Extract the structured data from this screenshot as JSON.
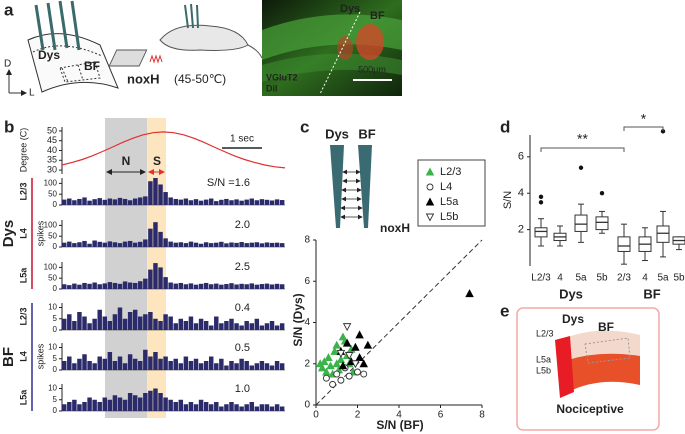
{
  "panel_labels": [
    "a",
    "b",
    "c",
    "d",
    "e"
  ],
  "a": {
    "left": {
      "regions": [
        "Dys",
        "BF"
      ],
      "axes": [
        "D",
        "L"
      ]
    },
    "middle": {
      "stimulus": "noxH",
      "temperature": "(45-50℃)"
    },
    "image": {
      "regions": [
        "Dys",
        "BF"
      ],
      "stains": [
        "VGluT2",
        "DiI"
      ],
      "scale_bar": "500μm"
    }
  },
  "b": {
    "temperature_ylabel": "Degree (C)",
    "ylim": [
      28,
      52
    ],
    "yticks": [
      30,
      35,
      40,
      45,
      50
    ],
    "temperature": [
      32.6,
      33.9,
      35.4,
      37.3,
      39.5,
      41.8,
      44.2,
      46.3,
      48.0,
      49.1,
      49.5,
      49.1,
      48.0,
      46.3,
      44.2,
      41.8,
      39.5,
      37.3,
      35.4,
      33.9,
      32.6,
      31.7,
      31.1
    ],
    "temperature_color": "#e03030",
    "bar_color": "#2b2b6b",
    "n_label": "N",
    "s_label": "S",
    "time_scale": "1 sec",
    "spikes_label": "spikes",
    "groups": [
      {
        "name": "Dys",
        "color": "#c8102e",
        "ylim": [
          0,
          125
        ],
        "yticks": [
          0,
          50,
          100
        ],
        "rows": [
          {
            "layer": "L2/3",
            "sn": "S/N =1.6",
            "counts": [
              25,
              30,
              22,
              28,
              35,
              20,
              27,
              32,
              24,
              30,
              26,
              33,
              28,
              22,
              30,
              35,
              40,
              110,
              125,
              95,
              60,
              35,
              28,
              25,
              30,
              22,
              27,
              20,
              25,
              30,
              18,
              24,
              28,
              22,
              26,
              20,
              25,
              30,
              22,
              27,
              24,
              21,
              26,
              23
            ]
          },
          {
            "layer": "L4",
            "sn": "2.0",
            "counts": [
              20,
              25,
              18,
              22,
              28,
              15,
              30,
              24,
              20,
              26,
              22,
              18,
              25,
              28,
              20,
              24,
              35,
              85,
              115,
              70,
              40,
              25,
              20,
              22,
              18,
              25,
              20,
              15,
              22,
              18,
              20,
              24,
              17,
              21,
              19,
              23,
              18,
              20,
              22,
              17,
              21,
              19,
              20,
              18
            ]
          },
          {
            "layer": "L5a",
            "sn": "2.5",
            "counts": [
              22,
              18,
              25,
              20,
              28,
              24,
              30,
              22,
              26,
              32,
              28,
              24,
              35,
              30,
              28,
              36,
              48,
              90,
              120,
              100,
              55,
              30,
              25,
              28,
              22,
              26,
              20,
              24,
              28,
              22,
              25,
              20,
              23,
              27,
              21,
              24,
              22,
              26,
              20,
              23,
              25,
              21,
              24,
              22
            ]
          }
        ]
      },
      {
        "name": "BF",
        "color": "#2e3192",
        "ylim": [
          0,
          12
        ],
        "yticks": [
          0,
          5,
          10
        ],
        "rows": [
          {
            "layer": "L2/3",
            "sn": "0.4",
            "counts": [
              5,
              7,
              4,
              8,
              6,
              3,
              5,
              9,
              6,
              4,
              7,
              10,
              5,
              8,
              9,
              6,
              7,
              8,
              5,
              4,
              7,
              6,
              3,
              5,
              4,
              6,
              3,
              5,
              4,
              2,
              6,
              3,
              4,
              5,
              3,
              2,
              4,
              3,
              5,
              2,
              3,
              4,
              2,
              3
            ]
          },
          {
            "layer": "L4",
            "sn": "0.5",
            "counts": [
              4,
              6,
              3,
              5,
              7,
              4,
              3,
              6,
              5,
              8,
              4,
              6,
              3,
              7,
              5,
              4,
              9,
              6,
              8,
              5,
              6,
              4,
              5,
              3,
              6,
              4,
              5,
              3,
              4,
              6,
              3,
              5,
              2,
              4,
              3,
              5,
              4,
              2,
              3,
              4,
              3,
              2,
              4,
              3
            ]
          },
          {
            "layer": "L5a",
            "sn": "1.0",
            "counts": [
              3,
              4,
              5,
              3,
              4,
              6,
              5,
              4,
              6,
              5,
              7,
              6,
              5,
              8,
              7,
              6,
              8,
              9,
              10,
              8,
              6,
              5,
              4,
              5,
              3,
              4,
              3,
              5,
              4,
              3,
              4,
              2,
              3,
              4,
              3,
              2,
              3,
              4,
              2,
              3,
              3,
              2,
              3,
              2
            ]
          }
        ]
      }
    ]
  },
  "c": {
    "electrodes": [
      "Dys",
      "BF"
    ],
    "stimulus": "noxH",
    "xlabel": "S/N (BF)",
    "ylabel": "S/N (Dys)",
    "xlim": [
      0,
      8
    ],
    "ylim": [
      0,
      8
    ],
    "xticks": [
      0,
      2,
      4,
      6,
      8
    ],
    "yticks": [
      0,
      2,
      4,
      6,
      8
    ],
    "series": [
      {
        "name": "L2/3",
        "marker": "triangle",
        "color": "#3cb34a",
        "filled": true,
        "x": [
          0.3,
          0.4,
          0.5,
          0.6,
          0.7,
          0.8,
          0.9,
          1.0,
          1.1,
          1.2,
          1.3,
          1.4,
          1.5,
          1.6,
          1.8,
          0.2,
          1.0,
          1.7
        ],
        "y": [
          1.8,
          2.1,
          1.6,
          2.3,
          1.9,
          1.5,
          2.6,
          2.0,
          1.7,
          2.2,
          3.3,
          3.1,
          2.4,
          2.0,
          1.6,
          2.0,
          2.9,
          2.7
        ]
      },
      {
        "name": "L4",
        "marker": "circle",
        "color": "#333333",
        "filled": false,
        "x": [
          0.5,
          0.8,
          1.0,
          1.2,
          1.4,
          1.6,
          2.0,
          2.3
        ],
        "y": [
          1.3,
          1.0,
          1.5,
          1.2,
          1.8,
          1.4,
          1.6,
          1.5
        ]
      },
      {
        "name": "L5a",
        "marker": "triangle",
        "color": "#000000",
        "filled": true,
        "x": [
          1.2,
          1.5,
          1.7,
          1.9,
          2.1,
          2.3,
          2.5,
          2.1,
          1.3,
          7.4
        ],
        "y": [
          2.6,
          3.0,
          2.1,
          2.8,
          2.3,
          2.0,
          2.9,
          3.4,
          1.9,
          5.4
        ]
      },
      {
        "name": "L5b",
        "marker": "down-triangle",
        "color": "#333333",
        "filled": false,
        "x": [
          1.5,
          1.6,
          1.9,
          1.2
        ],
        "y": [
          3.8,
          2.4,
          2.0,
          2.5
        ]
      }
    ]
  },
  "d": {
    "ylabel": "S/N",
    "ylim": [
      0,
      7.2
    ],
    "yticks": [
      2,
      4,
      6
    ],
    "significance": [
      "**",
      "*"
    ],
    "groups": [
      {
        "name": "Dys",
        "color": "#c8102e",
        "categories": [
          "L2/3",
          "4",
          "5a",
          "5b"
        ],
        "boxes": [
          {
            "min": 1.1,
            "q1": 1.6,
            "median": 1.9,
            "q3": 2.1,
            "max": 2.6,
            "outliers": [
              3.5,
              3.8
            ]
          },
          {
            "min": 1.1,
            "q1": 1.4,
            "median": 1.6,
            "q3": 1.8,
            "max": 2.2,
            "outliers": []
          },
          {
            "min": 1.3,
            "q1": 1.9,
            "median": 2.3,
            "q3": 2.8,
            "max": 3.4,
            "outliers": [
              5.4
            ]
          },
          {
            "min": 1.8,
            "q1": 2.0,
            "median": 2.4,
            "q3": 2.7,
            "max": 3.0,
            "outliers": [
              4.0
            ]
          }
        ]
      },
      {
        "name": "BF",
        "color": "#2e3192",
        "categories": [
          "2/3",
          "4",
          "5a",
          "5b"
        ],
        "boxes": [
          {
            "min": 0.1,
            "q1": 0.8,
            "median": 1.1,
            "q3": 1.6,
            "max": 2.3,
            "outliers": []
          },
          {
            "min": 0.3,
            "q1": 0.8,
            "median": 1.2,
            "q3": 1.6,
            "max": 2.1,
            "outliers": []
          },
          {
            "min": 0.5,
            "q1": 1.3,
            "median": 1.8,
            "q3": 2.2,
            "max": 3.0,
            "outliers": [
              7.4
            ]
          },
          {
            "min": 0.9,
            "q1": 1.2,
            "median": 1.4,
            "q3": 1.6,
            "max": 1.6,
            "outliers": []
          }
        ]
      }
    ]
  },
  "e": {
    "regions": [
      "Dys",
      "BF"
    ],
    "layers": [
      "L2/3",
      "L5a",
      "L5b"
    ],
    "label": "Nociceptive"
  }
}
